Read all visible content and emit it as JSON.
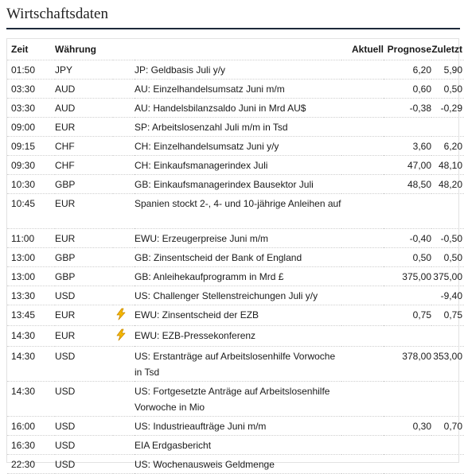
{
  "page": {
    "title": "Wirtschaftsdaten"
  },
  "table": {
    "headers": {
      "time": "Zeit",
      "currency": "Währung",
      "actual": "Aktuell",
      "forecast": "Prognose",
      "previous": "Zuletzt"
    },
    "rows": [
      {
        "time": "01:50",
        "currency": "JPY",
        "event": "JP: Geldbasis Juli y/y",
        "actual": "",
        "forecast": "6,20",
        "previous": "5,90",
        "flag": false
      },
      {
        "time": "03:30",
        "currency": "AUD",
        "event": "AU: Einzelhandelsumsatz Juni m/m",
        "actual": "",
        "forecast": "0,60",
        "previous": "0,50",
        "flag": false
      },
      {
        "time": "03:30",
        "currency": "AUD",
        "event": "AU: Handelsbilanzsaldo Juni in Mrd AU$",
        "actual": "",
        "forecast": "-0,38",
        "previous": "-0,29",
        "flag": false
      },
      {
        "time": "09:00",
        "currency": "EUR",
        "event": "SP: Arbeitslosenzahl Juli m/m in Tsd",
        "actual": "",
        "forecast": "",
        "previous": "",
        "flag": false
      },
      {
        "time": "09:15",
        "currency": "CHF",
        "event": "CH: Einzelhandelsumsatz Juni y/y",
        "actual": "",
        "forecast": "3,60",
        "previous": "6,20",
        "flag": false
      },
      {
        "time": "09:30",
        "currency": "CHF",
        "event": "CH: Einkaufsmanagerindex Juli",
        "actual": "",
        "forecast": "47,00",
        "previous": "48,10",
        "flag": false
      },
      {
        "time": "10:30",
        "currency": "GBP",
        "event": "GB: Einkaufsmanagerindex Bausektor Juli",
        "actual": "",
        "forecast": "48,50",
        "previous": "48,20",
        "flag": false
      },
      {
        "time": "10:45",
        "currency": "EUR",
        "event": "Spanien stockt 2-, 4- und 10-jährige Anleihen auf",
        "actual": "",
        "forecast": "",
        "previous": "",
        "flag": false
      },
      {
        "time": "11:00",
        "currency": "EUR",
        "event": "EWU: Erzeugerpreise Juni m/m",
        "actual": "",
        "forecast": "-0,40",
        "previous": "-0,50",
        "flag": false
      },
      {
        "time": "13:00",
        "currency": "GBP",
        "event": "GB: Zinsentscheid der Bank of England",
        "actual": "",
        "forecast": "0,50",
        "previous": "0,50",
        "flag": false
      },
      {
        "time": "13:00",
        "currency": "GBP",
        "event": "GB: Anleihekaufprogramm in Mrd £",
        "actual": "",
        "forecast": "375,00",
        "previous": "375,00",
        "flag": false
      },
      {
        "time": "13:30",
        "currency": "USD",
        "event": "US: Challenger Stellenstreichungen Juli y/y",
        "actual": "",
        "forecast": "",
        "previous": "-9,40",
        "flag": false
      },
      {
        "time": "13:45",
        "currency": "EUR",
        "event": "EWU: Zinsentscheid der EZB",
        "actual": "",
        "forecast": "0,75",
        "previous": "0,75",
        "flag": true
      },
      {
        "time": "14:30",
        "currency": "EUR",
        "event": "EWU: EZB-Pressekonferenz",
        "actual": "",
        "forecast": "",
        "previous": "",
        "flag": true
      },
      {
        "time": "14:30",
        "currency": "USD",
        "event": "US: Erstanträge auf Arbeitslosenhilfe Vorwoche in Tsd",
        "actual": "",
        "forecast": "378,00",
        "previous": "353,00",
        "flag": false
      },
      {
        "time": "14:30",
        "currency": "USD",
        "event": "US: Fortgesetzte Anträge auf Arbeitslosenhilfe Vorwoche in Mio",
        "actual": "",
        "forecast": "",
        "previous": "",
        "flag": false
      },
      {
        "time": "16:00",
        "currency": "USD",
        "event": "US: Industrieaufträge Juni m/m",
        "actual": "",
        "forecast": "0,30",
        "previous": "0,70",
        "flag": false
      },
      {
        "time": "16:30",
        "currency": "USD",
        "event": "EIA Erdgasbericht",
        "actual": "",
        "forecast": "",
        "previous": "",
        "flag": false
      },
      {
        "time": "22:30",
        "currency": "USD",
        "event": "US: Wochenausweis Geldmenge",
        "actual": "",
        "forecast": "",
        "previous": "",
        "flag": false
      }
    ]
  },
  "icons": {
    "flag_icon": "lightning-bolt-icon"
  },
  "colors": {
    "bolt_fill": "#f5b800",
    "bolt_stroke": "#c98a00",
    "title_rule": "#1e2a3a"
  }
}
